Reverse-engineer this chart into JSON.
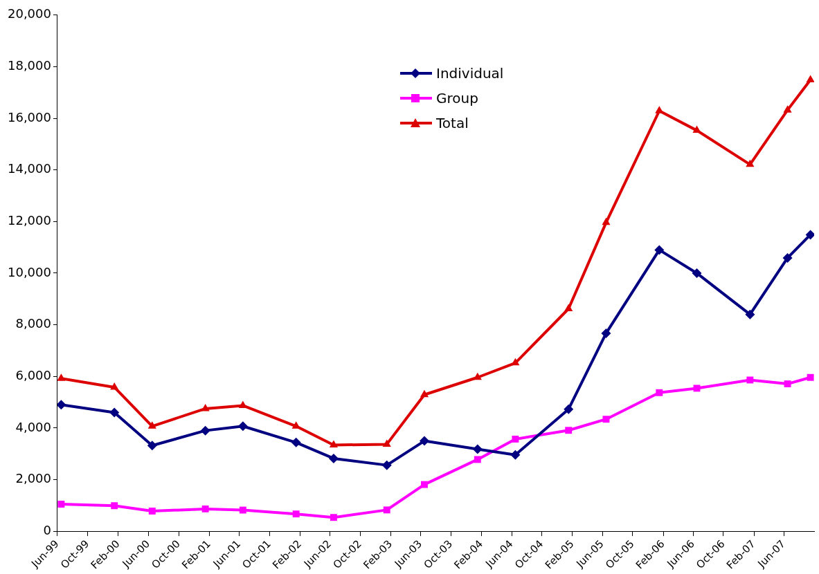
{
  "chart_data": {
    "type": "line",
    "x": [
      "1999-06-16",
      "2000-01-16",
      "2000-06-16",
      "2001-01-16",
      "2001-06-16",
      "2002-01-16",
      "2002-06-16",
      "2003-01-16",
      "2003-06-16",
      "2004-01-16",
      "2004-06-16",
      "2005-01-16",
      "2005-06-16",
      "2006-01-16",
      "2006-06-16",
      "2007-01-16",
      "2007-06-16",
      "2007-09-16"
    ],
    "series": [
      {
        "name": "Individual",
        "color": "#000080",
        "marker": "diamond",
        "values": [
          4900,
          4600,
          3320,
          3900,
          4070,
          3440,
          2820,
          2560,
          3500,
          3180,
          2960,
          4730,
          7670,
          10900,
          10000,
          8400,
          10590,
          11490
        ]
      },
      {
        "name": "Group",
        "color": "#ff00ff",
        "marker": "square",
        "values": [
          1050,
          990,
          780,
          865,
          820,
          670,
          535,
          825,
          1810,
          2780,
          3570,
          3910,
          4340,
          5370,
          5540,
          5860,
          5710,
          5960
        ]
      },
      {
        "name": "Total",
        "color": "#dd0000",
        "marker": "triangle",
        "values": [
          5920,
          5580,
          4070,
          4750,
          4870,
          4070,
          3340,
          3370,
          5290,
          5960,
          6520,
          8620,
          11960,
          16290,
          15530,
          14210,
          16320,
          17490
        ]
      }
    ],
    "xlim": [
      "1999-06-01",
      "2007-10-01"
    ],
    "xticks": [
      {
        "value": "1999-06-01",
        "label": "Jun-99"
      },
      {
        "value": "1999-10-01",
        "label": "Oct-99"
      },
      {
        "value": "2000-02-01",
        "label": "Feb-00"
      },
      {
        "value": "2000-06-01",
        "label": "Jun-00"
      },
      {
        "value": "2000-10-01",
        "label": "Oct-00"
      },
      {
        "value": "2001-02-01",
        "label": "Feb-01"
      },
      {
        "value": "2001-06-01",
        "label": "Jun-01"
      },
      {
        "value": "2001-10-01",
        "label": "Oct-01"
      },
      {
        "value": "2002-02-01",
        "label": "Feb-02"
      },
      {
        "value": "2002-06-01",
        "label": "Jun-02"
      },
      {
        "value": "2002-10-01",
        "label": "Oct-02"
      },
      {
        "value": "2003-02-01",
        "label": "Feb-03"
      },
      {
        "value": "2003-06-01",
        "label": "Jun-03"
      },
      {
        "value": "2003-10-01",
        "label": "Oct-03"
      },
      {
        "value": "2004-02-01",
        "label": "Feb-04"
      },
      {
        "value": "2004-06-01",
        "label": "Jun-04"
      },
      {
        "value": "2004-10-01",
        "label": "Oct-04"
      },
      {
        "value": "2005-02-01",
        "label": "Feb-05"
      },
      {
        "value": "2005-06-01",
        "label": "Jun-05"
      },
      {
        "value": "2005-10-01",
        "label": "Oct-05"
      },
      {
        "value": "2006-02-01",
        "label": "Feb-06"
      },
      {
        "value": "2006-06-01",
        "label": "Jun-06"
      },
      {
        "value": "2006-10-01",
        "label": "Oct-06"
      },
      {
        "value": "2007-02-01",
        "label": "Feb-07"
      },
      {
        "value": "2007-06-01",
        "label": "Jun-07"
      }
    ],
    "ylim": [
      0,
      20000
    ],
    "yticks": [
      {
        "value": 0,
        "label": "0"
      },
      {
        "value": 2000,
        "label": "2,000"
      },
      {
        "value": 4000,
        "label": "4,000"
      },
      {
        "value": 6000,
        "label": "6,000"
      },
      {
        "value": 8000,
        "label": "8,000"
      },
      {
        "value": 10000,
        "label": "10,000"
      },
      {
        "value": 12000,
        "label": "12,000"
      },
      {
        "value": 14000,
        "label": "14,000"
      },
      {
        "value": 16000,
        "label": "16,000"
      },
      {
        "value": 18000,
        "label": "18,000"
      },
      {
        "value": 20000,
        "label": "20,000"
      }
    ],
    "grid": false,
    "legend": "top"
  }
}
